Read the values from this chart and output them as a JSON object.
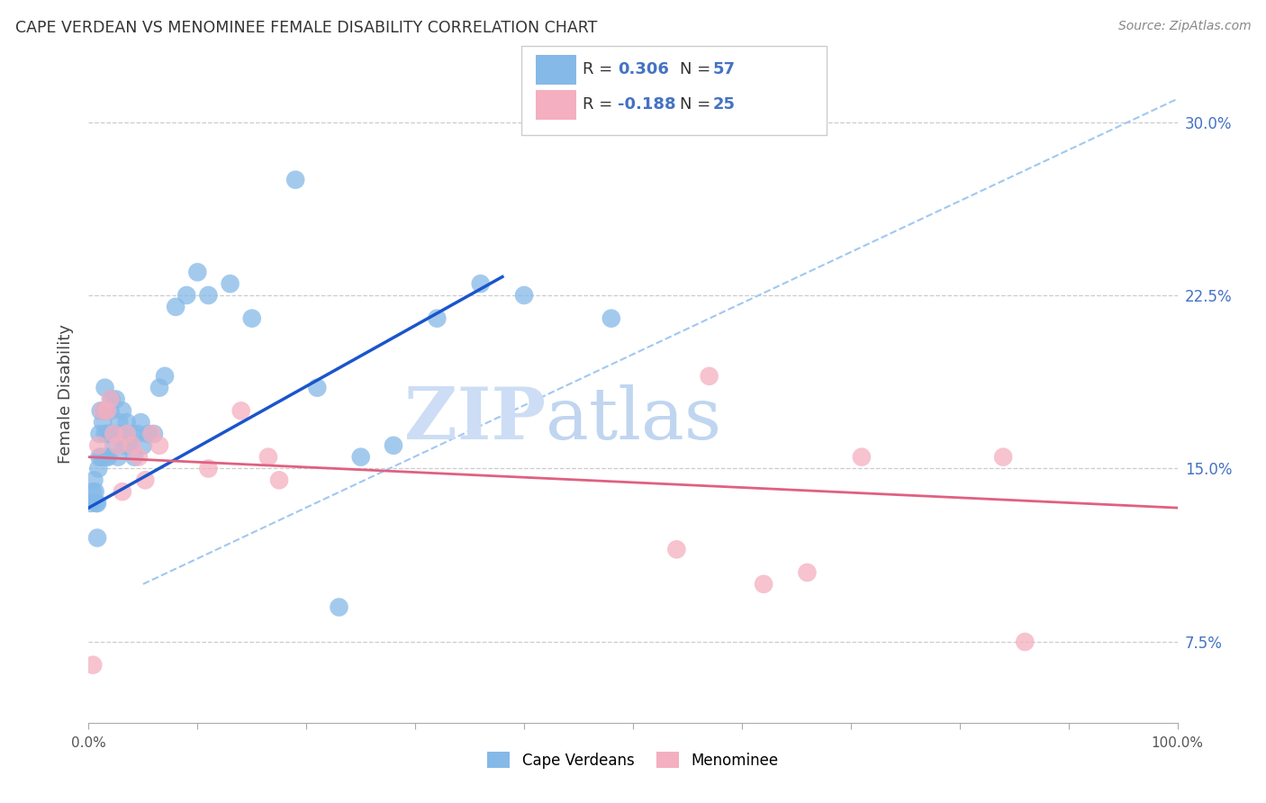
{
  "title": "CAPE VERDEAN VS MENOMINEE FEMALE DISABILITY CORRELATION CHART",
  "source": "Source: ZipAtlas.com",
  "ylabel": "Female Disability",
  "xlim": [
    0.0,
    1.0
  ],
  "ylim": [
    0.04,
    0.325
  ],
  "xtick_positions": [
    0.0,
    0.1,
    0.2,
    0.3,
    0.4,
    0.5,
    0.6,
    0.7,
    0.8,
    0.9,
    1.0
  ],
  "xticklabels": [
    "0.0%",
    "",
    "",
    "",
    "",
    "",
    "",
    "",
    "",
    "",
    "100.0%"
  ],
  "yticks_right": [
    0.075,
    0.15,
    0.225,
    0.3
  ],
  "yticklabels_right": [
    "7.5%",
    "15.0%",
    "22.5%",
    "30.0%"
  ],
  "grid_color": "#cccccc",
  "bg_color": "#ffffff",
  "blue_scatter_color": "#85b9e8",
  "pink_scatter_color": "#f4afc0",
  "blue_line_color": "#1a55cc",
  "pink_line_color": "#e06080",
  "dash_line_color": "#a0c8f0",
  "legend_box_color": "#cccccc",
  "legend_text_color_dark": "#333333",
  "legend_text_color_blue": "#4472c4",
  "watermark_zip_color": "#ccddf5",
  "watermark_atlas_color": "#c0d5f0",
  "cape_x": [
    0.002,
    0.004,
    0.005,
    0.006,
    0.007,
    0.008,
    0.008,
    0.009,
    0.01,
    0.01,
    0.011,
    0.012,
    0.013,
    0.014,
    0.015,
    0.015,
    0.016,
    0.017,
    0.018,
    0.019,
    0.02,
    0.021,
    0.022,
    0.023,
    0.025,
    0.026,
    0.027,
    0.028,
    0.03,
    0.031,
    0.033,
    0.035,
    0.037,
    0.04,
    0.042,
    0.045,
    0.048,
    0.05,
    0.055,
    0.06,
    0.065,
    0.07,
    0.08,
    0.09,
    0.1,
    0.11,
    0.13,
    0.15,
    0.19,
    0.21,
    0.23,
    0.25,
    0.28,
    0.32,
    0.36,
    0.4,
    0.48
  ],
  "cape_y": [
    0.135,
    0.14,
    0.145,
    0.14,
    0.135,
    0.135,
    0.12,
    0.15,
    0.155,
    0.165,
    0.175,
    0.155,
    0.17,
    0.175,
    0.185,
    0.165,
    0.155,
    0.165,
    0.155,
    0.165,
    0.175,
    0.18,
    0.165,
    0.16,
    0.18,
    0.165,
    0.155,
    0.17,
    0.165,
    0.175,
    0.16,
    0.17,
    0.16,
    0.165,
    0.155,
    0.165,
    0.17,
    0.16,
    0.165,
    0.165,
    0.185,
    0.19,
    0.22,
    0.225,
    0.235,
    0.225,
    0.23,
    0.215,
    0.275,
    0.185,
    0.09,
    0.155,
    0.16,
    0.215,
    0.23,
    0.225,
    0.215
  ],
  "men_x": [
    0.004,
    0.009,
    0.013,
    0.017,
    0.02,
    0.023,
    0.027,
    0.031,
    0.035,
    0.04,
    0.046,
    0.052,
    0.058,
    0.065,
    0.11,
    0.14,
    0.165,
    0.175,
    0.54,
    0.57,
    0.62,
    0.66,
    0.71,
    0.84,
    0.86
  ],
  "men_y": [
    0.065,
    0.16,
    0.175,
    0.175,
    0.18,
    0.165,
    0.16,
    0.14,
    0.165,
    0.16,
    0.155,
    0.145,
    0.165,
    0.16,
    0.15,
    0.175,
    0.155,
    0.145,
    0.115,
    0.19,
    0.1,
    0.105,
    0.155,
    0.155,
    0.075
  ]
}
